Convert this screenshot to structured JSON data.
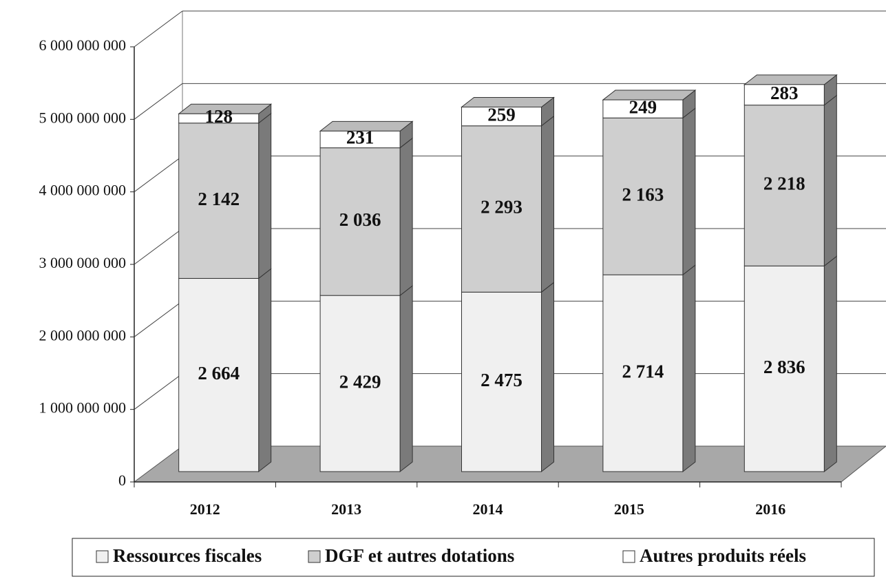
{
  "chart_data": {
    "type": "bar3d_stacked",
    "categories": [
      "2012",
      "2013",
      "2014",
      "2015",
      "2016"
    ],
    "series": [
      {
        "name": "Ressources fiscales",
        "color": "#f0f0f0",
        "values": [
          2664000000,
          2429000000,
          2475000000,
          2714000000,
          2836000000
        ],
        "value_labels": [
          "2 664",
          "2 429",
          "2 475",
          "2 714",
          "2 836"
        ]
      },
      {
        "name": "DGF et autres dotations",
        "color": "#cfcfcf",
        "values": [
          2142000000,
          2036000000,
          2293000000,
          2163000000,
          2218000000
        ],
        "value_labels": [
          "2 142",
          "2 036",
          "2 293",
          "2 163",
          "2 218"
        ]
      },
      {
        "name": "Autres produits réels",
        "color": "#ffffff",
        "values": [
          128000000,
          231000000,
          259000000,
          249000000,
          283000000
        ],
        "value_labels": [
          "128",
          "231",
          "259",
          "249",
          "283"
        ]
      }
    ],
    "ylim": [
      0,
      6000000000
    ],
    "yticks": [
      0,
      {
        "value": 1000000000,
        "label": "1 000 000 000"
      },
      {
        "value": 2000000000,
        "label": "2 000 000 000"
      },
      {
        "value": 3000000000,
        "label": "3 000 000 000"
      },
      {
        "value": 4000000000,
        "label": "4 000 000 000"
      },
      {
        "value": 5000000000,
        "label": "5 000 000 000"
      },
      {
        "value": 6000000000,
        "label": "6 000 000 000"
      }
    ],
    "grid": true
  }
}
